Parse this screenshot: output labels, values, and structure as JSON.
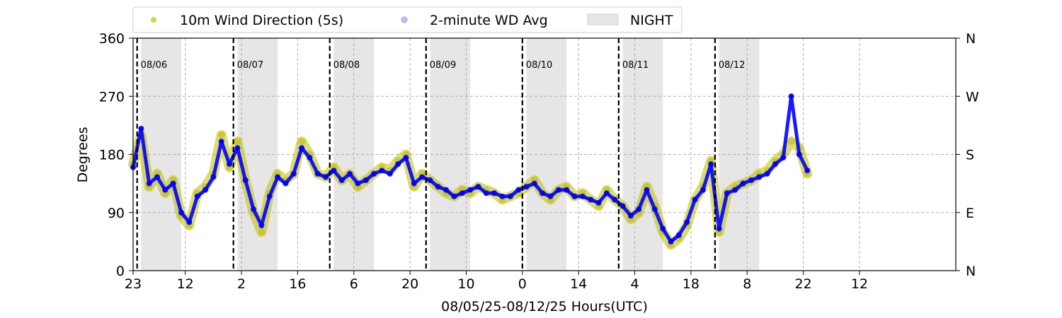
{
  "chart_data": {
    "type": "scatter",
    "xlabel": "08/05/25-08/12/25  Hours(UTC)",
    "ylabel": "Degrees",
    "x_range_hours": [
      0,
      205
    ],
    "ylim": [
      0,
      360
    ],
    "x_ticks": [
      {
        "hour": 0,
        "label": "23"
      },
      {
        "hour": 13,
        "label": "12"
      },
      {
        "hour": 27,
        "label": "2"
      },
      {
        "hour": 41,
        "label": "16"
      },
      {
        "hour": 55,
        "label": "6"
      },
      {
        "hour": 69,
        "label": "20"
      },
      {
        "hour": 83,
        "label": "10"
      },
      {
        "hour": 97,
        "label": "0"
      },
      {
        "hour": 111,
        "label": "14"
      },
      {
        "hour": 125,
        "label": "4"
      },
      {
        "hour": 139,
        "label": "18"
      },
      {
        "hour": 153,
        "label": "8"
      },
      {
        "hour": 167,
        "label": "22"
      },
      {
        "hour": 181,
        "label": "12"
      }
    ],
    "y_ticks": [
      0,
      90,
      180,
      270,
      360
    ],
    "y2_ticks": [
      {
        "value": 0,
        "label": "N"
      },
      {
        "value": 90,
        "label": "E"
      },
      {
        "value": 180,
        "label": "S"
      },
      {
        "value": 270,
        "label": "W"
      },
      {
        "value": 360,
        "label": "N"
      }
    ],
    "grid": true,
    "legend_position": "top, above plot",
    "legend": [
      {
        "name": "10m Wind Direction (5s)",
        "color": "#bfbf00",
        "kind": "marker"
      },
      {
        "name": "2-minute WD Avg",
        "color": "#0000ff",
        "kind": "marker"
      },
      {
        "name": "NIGHT",
        "color": "#e6e6e6",
        "kind": "patch"
      }
    ],
    "day_markers": [
      {
        "hour": 1,
        "label": "08/06"
      },
      {
        "hour": 25,
        "label": "08/07"
      },
      {
        "hour": 49,
        "label": "08/08"
      },
      {
        "hour": 73,
        "label": "08/09"
      },
      {
        "hour": 97,
        "label": "08/10"
      },
      {
        "hour": 121,
        "label": "08/11"
      },
      {
        "hour": 145,
        "label": "08/12"
      }
    ],
    "night_periods": [
      [
        2,
        12
      ],
      [
        26,
        36
      ],
      [
        50,
        60
      ],
      [
        74,
        84
      ],
      [
        98,
        108
      ],
      [
        122,
        132
      ],
      [
        146,
        156
      ]
    ],
    "series": [
      {
        "name": "10m Wind Direction (5s)",
        "color": "#bfbf00",
        "x": [
          0,
          2,
          4,
          6,
          8,
          10,
          12,
          14,
          16,
          18,
          20,
          22,
          24,
          26,
          28,
          30,
          32,
          34,
          36,
          38,
          40,
          42,
          44,
          46,
          48,
          50,
          52,
          54,
          56,
          58,
          60,
          62,
          64,
          66,
          68,
          70,
          72,
          74,
          76,
          78,
          80,
          82,
          84,
          86,
          88,
          90,
          92,
          94,
          96,
          98,
          100,
          102,
          104,
          106,
          108,
          110,
          112,
          114,
          116,
          118,
          120,
          122,
          124,
          126,
          128,
          130,
          132,
          134,
          136,
          138,
          140,
          142,
          144,
          146,
          148,
          150,
          152,
          154,
          156,
          158,
          160,
          162,
          164,
          166,
          168
        ],
        "y": [
          165,
          210,
          130,
          150,
          120,
          140,
          85,
          70,
          120,
          130,
          150,
          210,
          160,
          200,
          140,
          90,
          60,
          120,
          150,
          140,
          150,
          200,
          180,
          150,
          145,
          160,
          140,
          150,
          130,
          140,
          150,
          160,
          155,
          170,
          180,
          130,
          150,
          140,
          130,
          120,
          115,
          125,
          120,
          130,
          125,
          120,
          110,
          115,
          120,
          130,
          140,
          120,
          110,
          125,
          130,
          115,
          120,
          110,
          100,
          125,
          110,
          100,
          80,
          90,
          130,
          100,
          60,
          40,
          50,
          70,
          110,
          130,
          170,
          60,
          120,
          130,
          135,
          140,
          150,
          155,
          170,
          180,
          200,
          190,
          150
        ]
      },
      {
        "name": "2-minute WD Avg",
        "color": "#0000ff",
        "x": [
          0,
          2,
          4,
          6,
          8,
          10,
          12,
          14,
          16,
          18,
          20,
          22,
          24,
          26,
          28,
          30,
          32,
          34,
          36,
          38,
          40,
          42,
          44,
          46,
          48,
          50,
          52,
          54,
          56,
          58,
          60,
          62,
          64,
          66,
          68,
          70,
          72,
          74,
          76,
          78,
          80,
          82,
          84,
          86,
          88,
          90,
          92,
          94,
          96,
          98,
          100,
          102,
          104,
          106,
          108,
          110,
          112,
          114,
          116,
          118,
          120,
          122,
          124,
          126,
          128,
          130,
          132,
          134,
          136,
          138,
          140,
          142,
          144,
          146,
          148,
          150,
          152,
          154,
          156,
          158,
          160,
          162,
          164,
          166,
          168
        ],
        "y": [
          160,
          220,
          135,
          145,
          125,
          135,
          90,
          75,
          115,
          125,
          145,
          200,
          165,
          190,
          140,
          95,
          70,
          115,
          145,
          135,
          150,
          190,
          175,
          150,
          145,
          155,
          140,
          150,
          135,
          140,
          150,
          155,
          150,
          165,
          175,
          135,
          145,
          140,
          130,
          125,
          115,
          120,
          125,
          130,
          120,
          120,
          115,
          115,
          125,
          130,
          135,
          120,
          115,
          125,
          125,
          115,
          115,
          110,
          105,
          120,
          110,
          100,
          85,
          95,
          125,
          95,
          65,
          45,
          55,
          75,
          110,
          125,
          165,
          65,
          120,
          125,
          135,
          140,
          145,
          150,
          165,
          175,
          270,
          180,
          155
        ]
      }
    ]
  }
}
